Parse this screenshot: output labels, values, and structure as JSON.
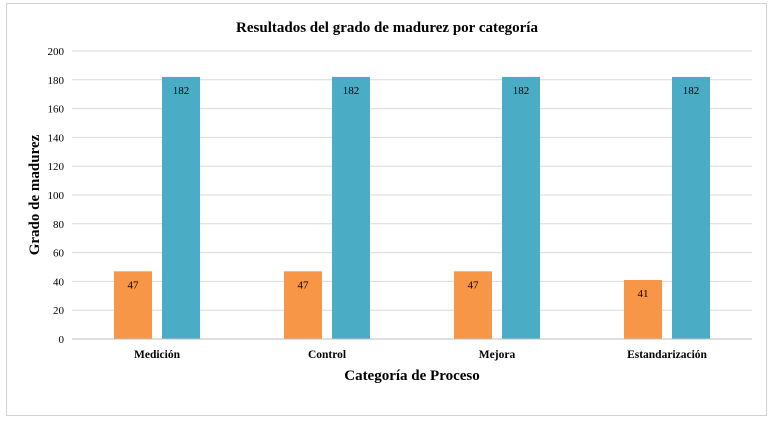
{
  "chart_data": {
    "type": "bar",
    "title": "Resultados del grado de madurez por categoría",
    "xlabel": "Categoría de Proceso",
    "ylabel": "Grado de madurez",
    "categories": [
      "Medición",
      "Control",
      "Mejora",
      "Estandarización"
    ],
    "series": [
      {
        "values": [
          47,
          47,
          47,
          41
        ],
        "color": "#F79646"
      },
      {
        "values": [
          182,
          182,
          182,
          182
        ],
        "color": "#4BACC6"
      }
    ],
    "ylim": [
      0,
      200
    ],
    "yticks": [
      0,
      20,
      40,
      60,
      80,
      100,
      120,
      140,
      160,
      180,
      200
    ],
    "grid": true,
    "data_labels": true,
    "legend": "none"
  }
}
